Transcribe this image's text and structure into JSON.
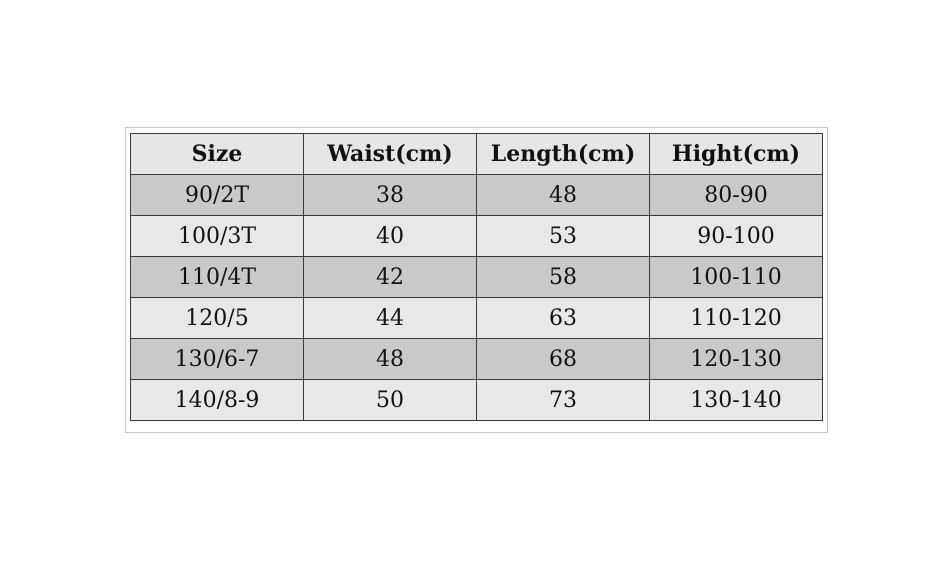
{
  "table": {
    "headers": [
      "Size",
      "Waist(cm)",
      "Length(cm)",
      "Hight(cm)"
    ],
    "rows": [
      [
        "90/2T",
        "38",
        "48",
        "80-90"
      ],
      [
        "100/3T",
        "40",
        "53",
        "90-100"
      ],
      [
        "110/4T",
        "42",
        "58",
        "100-110"
      ],
      [
        "120/5",
        "44",
        "63",
        "110-120"
      ],
      [
        "130/6-7",
        "48",
        "68",
        "120-130"
      ],
      [
        "140/8-9",
        "50",
        "73",
        "130-140"
      ]
    ]
  },
  "colors": {
    "header_bg": "#e6e6e6",
    "row_light": "#e8e8e8",
    "row_dark": "#c9c9c9",
    "border": "#3a3a3a"
  }
}
